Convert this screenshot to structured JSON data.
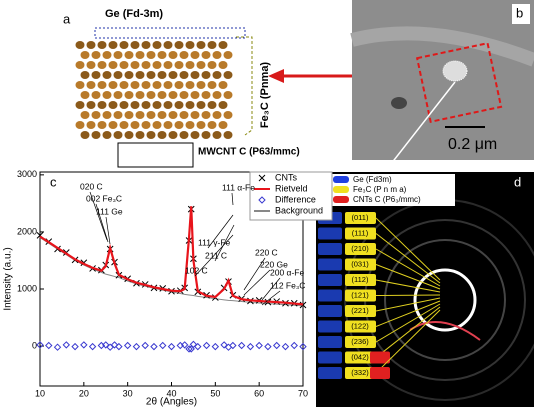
{
  "panel_a": {
    "label": "a",
    "ge": "Ge (Fd-3m)",
    "fe3c": "Fe₃C (Pnma)",
    "mwcnt": "MWCNT C (P63/mmc)"
  },
  "panel_b": {
    "label": "b",
    "scale_bar": "0.2 μm"
  },
  "chart_data": {
    "type": "line",
    "panel_label": "c",
    "x_label": "2θ (Angles)",
    "y_label": "Intensity (a.u.)",
    "xlim": [
      10,
      70
    ],
    "xticks": [
      10,
      20,
      30,
      40,
      50,
      60,
      70
    ],
    "ylim": [
      -700,
      3050
    ],
    "yticks": [
      0,
      1000,
      2000,
      3000
    ],
    "legend": "upper right",
    "x": [
      10,
      12,
      14,
      16,
      18,
      20,
      22,
      24,
      25,
      26,
      27,
      28,
      30,
      32,
      34,
      36,
      38,
      40,
      42,
      43,
      44,
      44.5,
      45,
      46,
      48,
      50,
      52,
      53,
      54,
      56,
      58,
      60,
      62,
      64,
      66,
      68,
      70
    ],
    "series": [
      {
        "name": "CNTs",
        "color": "#000000",
        "style": "markers",
        "values": [
          1940,
          1830,
          1700,
          1640,
          1510,
          1460,
          1360,
          1330,
          1420,
          1700,
          1470,
          1240,
          1180,
          1100,
          1080,
          1020,
          1010,
          960,
          970,
          1020,
          1850,
          2400,
          1530,
          950,
          890,
          850,
          1020,
          1130,
          890,
          830,
          790,
          800,
          770,
          780,
          750,
          750,
          720
        ]
      },
      {
        "name": "Rietveld",
        "color": "#e8141b",
        "style": "line",
        "values": [
          1920,
          1820,
          1720,
          1620,
          1520,
          1440,
          1370,
          1320,
          1400,
          1720,
          1450,
          1250,
          1170,
          1110,
          1070,
          1030,
          1000,
          970,
          960,
          1000,
          1900,
          2450,
          1500,
          960,
          880,
          860,
          1000,
          1150,
          880,
          820,
          800,
          790,
          780,
          770,
          760,
          745,
          730
        ]
      },
      {
        "name": "Difference",
        "color": "#3a3ad0",
        "style": "diamonds",
        "values": [
          20,
          10,
          -20,
          20,
          -10,
          20,
          -10,
          10,
          20,
          -20,
          20,
          -10,
          10,
          -10,
          10,
          -10,
          10,
          -10,
          10,
          20,
          -50,
          -50,
          30,
          -10,
          10,
          -10,
          20,
          -20,
          10,
          10,
          -10,
          10,
          -10,
          10,
          -10,
          10,
          -10
        ]
      },
      {
        "name": "Background",
        "color": "#888888",
        "style": "line",
        "values": [
          1900,
          1800,
          1700,
          1600,
          1500,
          1420,
          1350,
          1290,
          1260,
          1240,
          1220,
          1200,
          1140,
          1090,
          1050,
          1010,
          980,
          950,
          920,
          905,
          895,
          890,
          885,
          870,
          850,
          830,
          810,
          800,
          795,
          780,
          765,
          755,
          745,
          735,
          725,
          715,
          705
        ]
      }
    ],
    "annotations": [
      "020 C",
      "002 Fe₃C",
      "111 Ge",
      "111 α-Fe",
      "111 γ-Fe",
      "211 C",
      "102 C",
      "220 C",
      "220 Ge",
      "200 α-Fe",
      "112 Fe₃C"
    ]
  },
  "panel_d": {
    "label": "d",
    "legend": [
      "Ge (Fd3m)",
      "Fe₃C (P n m a)",
      "CNTs C (P6₃/mmc)"
    ],
    "yellow_labels": [
      "(011)",
      "(111)",
      "(210)",
      "(031)",
      "(112)",
      "(121)",
      "(221)",
      "(122)",
      "(236)",
      "(042)",
      "(332)"
    ]
  }
}
